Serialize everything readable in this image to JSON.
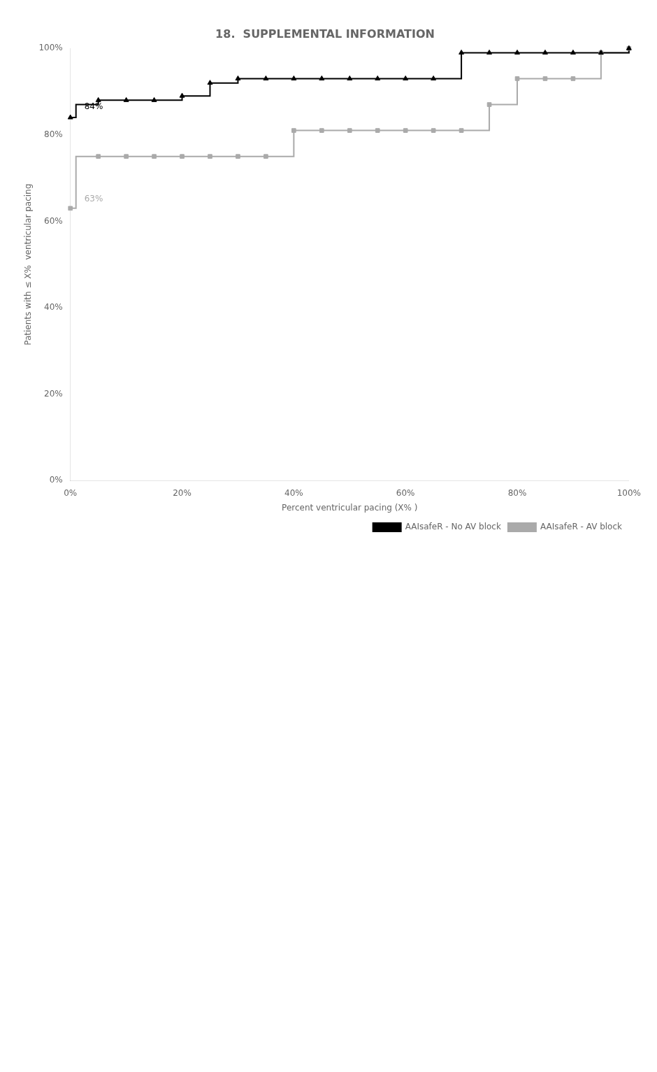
{
  "chart_data": {
    "type": "line",
    "title": "18.  SUPPLEMENTAL INFORMATION",
    "x_label": "Percent ventricular pacing (X% )",
    "y_label": "Patients with ≤ X%  ventricular pacing",
    "series": [
      {
        "name": "AAIsafeR - No AV block",
        "type": "line",
        "line_style": "step",
        "color": "#000000",
        "x": [
          0,
          1,
          5,
          10,
          15,
          20,
          25,
          30,
          35,
          40,
          45,
          50,
          55,
          60,
          65,
          70,
          75,
          80,
          85,
          90,
          95,
          100
        ],
        "values": [
          84,
          87,
          88,
          88,
          88,
          89,
          92,
          93,
          93,
          93,
          93,
          93,
          93,
          93,
          93,
          99,
          99,
          99,
          99,
          99,
          99,
          100
        ]
      },
      {
        "name": "AAIsafeR - AV block",
        "type": "line",
        "line_style": "step",
        "color": "#aaaaaa",
        "x": [
          0,
          1,
          5,
          10,
          15,
          20,
          25,
          30,
          35,
          40,
          45,
          50,
          55,
          60,
          65,
          70,
          75,
          80,
          85,
          90,
          95,
          100
        ],
        "values": [
          63,
          75,
          75,
          75,
          75,
          75,
          75,
          75,
          75,
          81,
          81,
          81,
          81,
          81,
          81,
          81,
          87,
          93,
          93,
          93,
          99,
          100
        ]
      },
      {
        "type": "scatter",
        "marker": "triangle",
        "color": "#000000",
        "x": [
          0,
          5,
          10,
          15,
          20,
          25,
          30,
          35,
          40,
          45,
          50,
          55,
          60,
          65,
          70,
          75,
          80,
          85,
          90,
          95,
          100
        ],
        "values": [
          84,
          88,
          88,
          88,
          89,
          92,
          93,
          93,
          93,
          93,
          93,
          93,
          93,
          93,
          99,
          99,
          99,
          99,
          99,
          99,
          100
        ]
      },
      {
        "type": "scatter",
        "marker": "square",
        "color": "#aaaaaa",
        "x": [
          0,
          5,
          10,
          15,
          20,
          25,
          30,
          35,
          40,
          45,
          50,
          55,
          60,
          65,
          70,
          75,
          80,
          85,
          90,
          95,
          100
        ],
        "values": [
          63,
          75,
          75,
          75,
          75,
          75,
          75,
          75,
          81,
          81,
          81,
          81,
          81,
          81,
          81,
          87,
          93,
          93,
          93,
          99,
          100
        ]
      }
    ],
    "annotations": [
      {
        "text": "84%",
        "x": 2.5,
        "y": 85.5,
        "color": "#000000"
      },
      {
        "text": "63%",
        "x": 2.5,
        "y": 64.2,
        "color": "#aaaaaa"
      }
    ],
    "xlim": [
      0,
      100
    ],
    "ylim": [
      0,
      100
    ],
    "xticks": [
      {
        "value": 0,
        "label": "0%"
      },
      {
        "value": 20,
        "label": "20%"
      },
      {
        "value": 40,
        "label": "40%"
      },
      {
        "value": 60,
        "label": "60%"
      },
      {
        "value": 80,
        "label": "80%"
      },
      {
        "value": 100,
        "label": "100%"
      }
    ],
    "yticks": [
      {
        "value": 0,
        "label": "0%"
      },
      {
        "value": 20,
        "label": "20%"
      },
      {
        "value": 40,
        "label": "40%"
      },
      {
        "value": 60,
        "label": "60%"
      },
      {
        "value": 80,
        "label": "80%"
      },
      {
        "value": 100,
        "label": "100%"
      }
    ],
    "grid": false,
    "legend": "lower right"
  }
}
